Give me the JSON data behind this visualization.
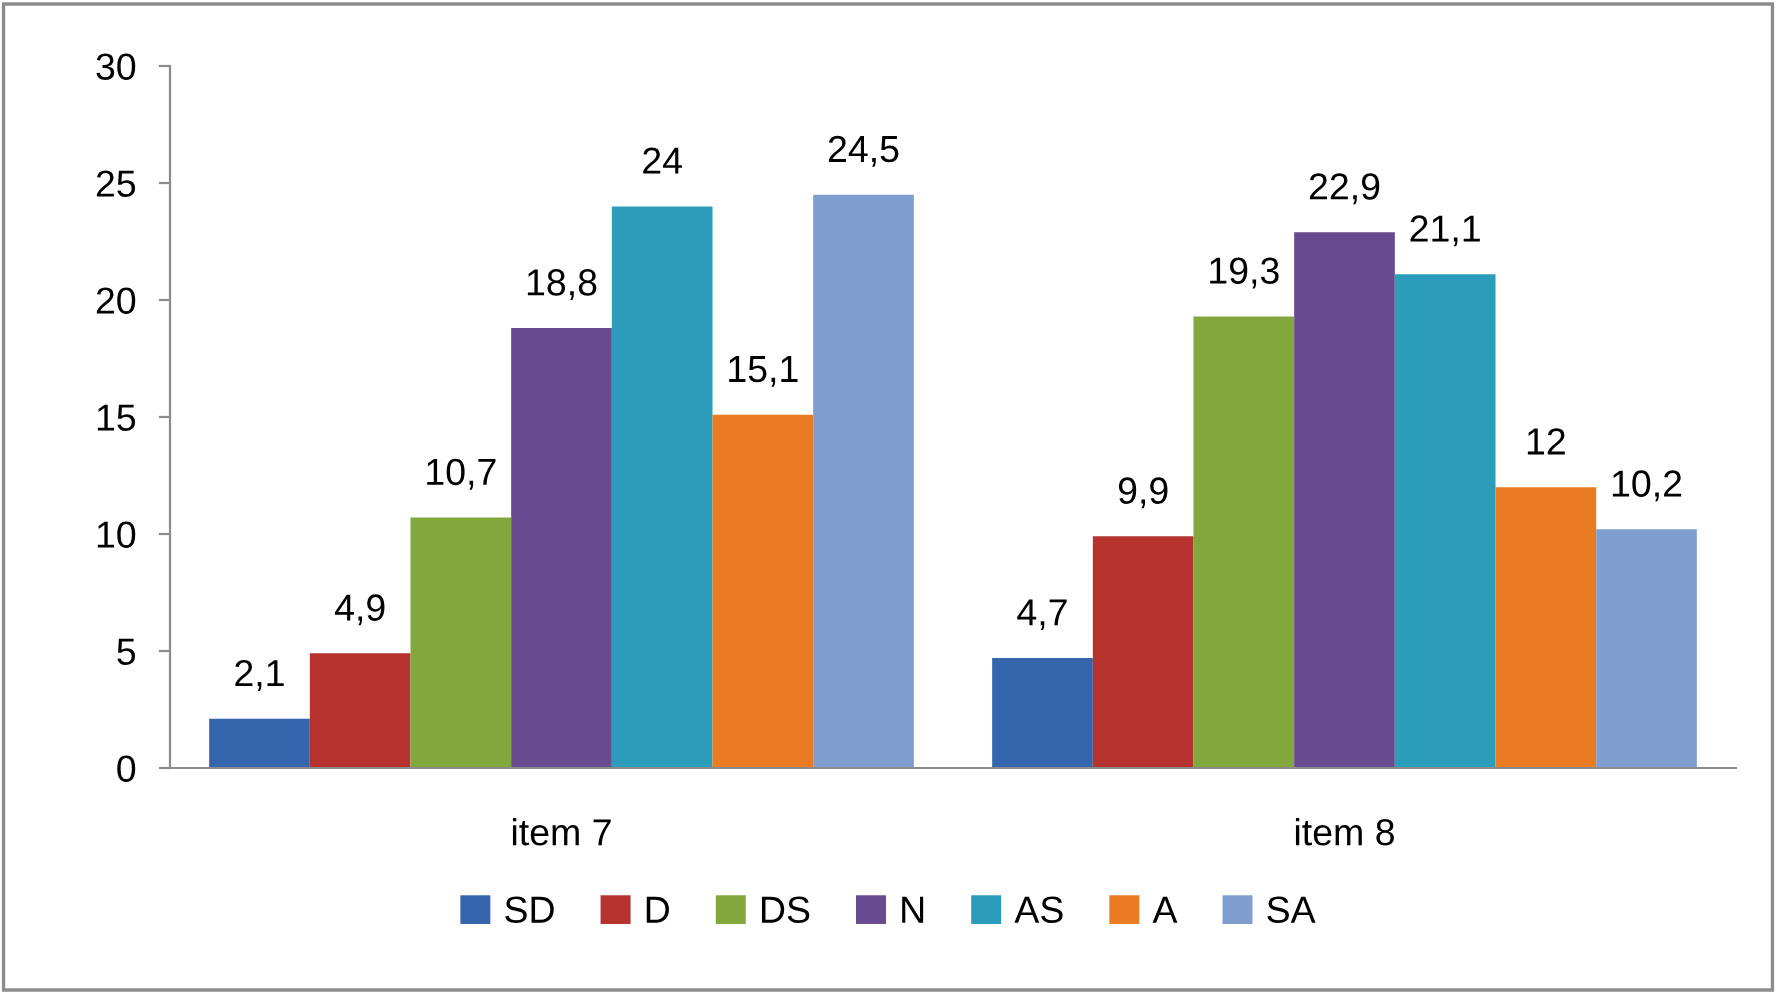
{
  "chart_data": {
    "type": "bar",
    "categories": [
      "item 7",
      "item 8"
    ],
    "series": [
      {
        "name": "SD",
        "color": "#3566ad",
        "values": [
          2.1,
          4.7
        ],
        "value_labels": [
          "2,1",
          "4,7"
        ]
      },
      {
        "name": "D",
        "color": "#b5322f",
        "values": [
          4.9,
          9.9
        ],
        "value_labels": [
          "4,9",
          "9,9"
        ]
      },
      {
        "name": "DS",
        "color": "#82a83d",
        "values": [
          10.7,
          19.3
        ],
        "value_labels": [
          "10,7",
          "19,3"
        ]
      },
      {
        "name": "N",
        "color": "#684a90",
        "values": [
          18.8,
          22.9
        ],
        "value_labels": [
          "18,8",
          "22,9"
        ]
      },
      {
        "name": "AS",
        "color": "#2b9cba",
        "values": [
          24,
          21.1
        ],
        "value_labels": [
          "24",
          "21,1"
        ]
      },
      {
        "name": "A",
        "color": "#e97c22",
        "values": [
          15.1,
          12
        ],
        "value_labels": [
          "15,1",
          "12"
        ]
      },
      {
        "name": "SA",
        "color": "#7f9dcf",
        "values": [
          24.5,
          10.2
        ],
        "value_labels": [
          "24,5",
          "10,2"
        ]
      }
    ],
    "ylim": [
      0,
      30
    ],
    "yticks": [
      0,
      5,
      10,
      15,
      20,
      25,
      30
    ],
    "grid": false,
    "legend": "bottom"
  }
}
